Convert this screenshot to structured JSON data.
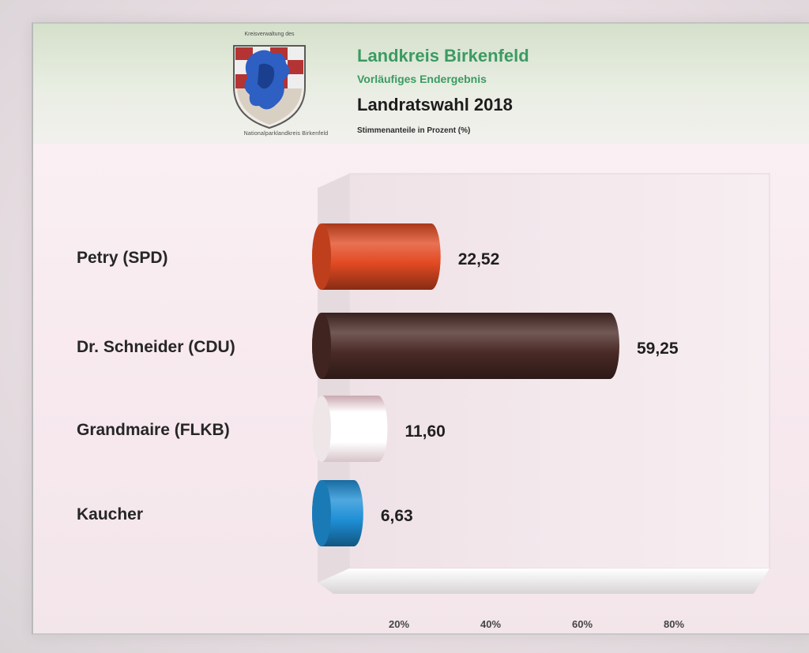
{
  "header": {
    "crest_top_text": "Kreisverwaltung des",
    "crest_caption": "Nationalparklandkreis Birkenfeld",
    "title": "Landkreis Birkenfeld",
    "subtitle": "Vorläufiges Endergebnis",
    "heading": "Landratswahl 2018",
    "unit_note": "Stimmenanteile in Prozent (%)"
  },
  "chart_data": {
    "type": "bar",
    "orientation": "horizontal",
    "style": "3d-cylinder",
    "title": "Landratswahl 2018",
    "subtitle": "Stimmenanteile in Prozent (%)",
    "categories": [
      "Petry (SPD)",
      "Dr. Schneider (CDU)",
      "Grandmaire (FLKB)",
      "Kaucher"
    ],
    "values": [
      22.52,
      59.25,
      11.6,
      6.63
    ],
    "value_labels": [
      "22,52",
      "59,25",
      "11,60",
      "6,63"
    ],
    "colors": [
      "#e14a22",
      "#4a2a26",
      "#ffffff",
      "#1e8fd6"
    ],
    "xlim": [
      0,
      90
    ],
    "ticks": [
      20,
      40,
      60,
      80
    ],
    "tick_labels": [
      "20%",
      "40%",
      "60%",
      "80%"
    ],
    "grid": false,
    "legend": "none"
  }
}
